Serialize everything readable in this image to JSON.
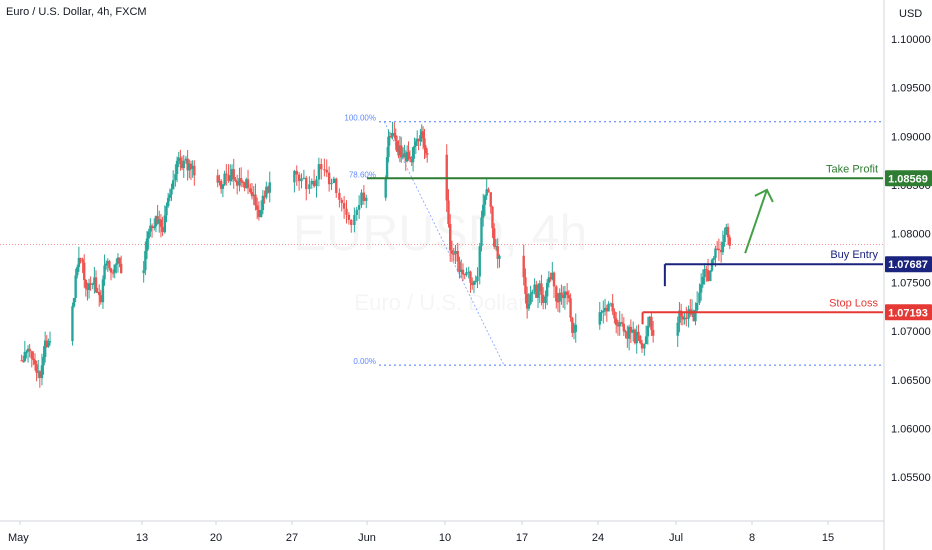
{
  "header": {
    "title": "Euro / U.S. Dollar, 4h, FXCM",
    "currency": "USD"
  },
  "watermark": {
    "symbol": "EURUSD, 4h",
    "name": "Euro / U.S. Dollar"
  },
  "colors": {
    "up": "#26a69a",
    "down": "#ef5350",
    "take_profit": "#2e7d32",
    "buy_entry": "#1a237e",
    "stop_loss": "#e53935",
    "fib": "#2962ff",
    "arrow": "#43a047"
  },
  "chart_data": {
    "type": "candlestick",
    "ylim": [
      1.0505,
      1.104
    ],
    "y_ticks": [
      "1.10000",
      "1.09500",
      "1.09000",
      "1.08500",
      "1.08000",
      "1.07500",
      "1.07000",
      "1.06500",
      "1.06000",
      "1.05500"
    ],
    "x_tick_labels": [
      "May",
      "13",
      "20",
      "27",
      "Jun",
      "10",
      "17",
      "24",
      "Jul",
      "8",
      "15"
    ],
    "x_tick_dates": [
      "2024-05-01",
      "2024-05-13",
      "2024-05-20",
      "2024-05-27",
      "2024-06-01",
      "2024-06-10",
      "2024-06-17",
      "2024-06-24",
      "2024-07-01",
      "2024-07-08",
      "2024-07-15"
    ],
    "ohlc_path": [
      [
        "2024-05-01",
        1.067
      ],
      [
        "2024-05-02",
        1.065
      ],
      [
        "2024-05-03",
        1.07
      ],
      [
        "2024-05-04",
        1.076
      ],
      [
        "2024-05-05",
        1.079
      ],
      [
        "2024-05-06",
        1.077
      ],
      [
        "2024-05-07",
        1.075
      ],
      [
        "2024-05-08",
        1.074
      ],
      [
        "2024-05-09",
        1.0775
      ],
      [
        "2024-05-10",
        1.0772
      ],
      [
        "2024-05-11",
        1.079
      ],
      [
        "2024-05-12",
        1.08
      ],
      [
        "2024-05-13",
        1.079
      ],
      [
        "2024-05-14",
        1.082
      ],
      [
        "2024-05-15",
        1.087
      ],
      [
        "2024-05-16",
        1.0885
      ],
      [
        "2024-05-17",
        1.087
      ],
      [
        "2024-05-18",
        1.0872
      ],
      [
        "2024-05-19",
        1.0878
      ],
      [
        "2024-05-20",
        1.086
      ],
      [
        "2024-05-21",
        1.086
      ],
      [
        "2024-05-22",
        1.0855
      ],
      [
        "2024-05-23",
        1.083
      ],
      [
        "2024-05-24",
        1.085
      ],
      [
        "2024-05-25",
        1.0848
      ],
      [
        "2024-05-26",
        1.084
      ],
      [
        "2024-05-27",
        1.0855
      ],
      [
        "2024-05-28",
        1.087
      ],
      [
        "2024-05-29",
        1.084
      ],
      [
        "2024-05-30",
        1.0805
      ],
      [
        "2024-05-31",
        1.084
      ],
      [
        "2024-06-01",
        1.0845
      ],
      [
        "2024-06-02",
        1.0855
      ],
      [
        "2024-06-03",
        1.091
      ],
      [
        "2024-06-04",
        1.088
      ],
      [
        "2024-06-05",
        1.0875
      ],
      [
        "2024-06-06",
        1.089
      ],
      [
        "2024-06-07",
        1.0895
      ],
      [
        "2024-06-08",
        1.081
      ],
      [
        "2024-06-09",
        1.0795
      ],
      [
        "2024-06-10",
        1.076
      ],
      [
        "2024-06-11",
        1.074
      ],
      [
        "2024-06-12",
        1.074
      ],
      [
        "2024-06-13",
        1.0845
      ],
      [
        "2024-06-14",
        1.078
      ],
      [
        "2024-06-15",
        1.07
      ],
      [
        "2024-06-16",
        1.0705
      ],
      [
        "2024-06-17",
        1.0725
      ],
      [
        "2024-06-18",
        1.0735
      ],
      [
        "2024-06-19",
        1.0745
      ],
      [
        "2024-06-20",
        1.073
      ],
      [
        "2024-06-21",
        1.07
      ],
      [
        "2024-06-22",
        1.0705
      ],
      [
        "2024-06-23",
        1.0695
      ],
      [
        "2024-06-24",
        1.074
      ],
      [
        "2024-06-25",
        1.072
      ],
      [
        "2024-06-26",
        1.07
      ],
      [
        "2024-06-27",
        1.069
      ],
      [
        "2024-06-28",
        1.0705
      ],
      [
        "2024-06-29",
        1.072
      ],
      [
        "2024-06-30",
        1.076
      ],
      [
        "2024-07-01",
        1.073
      ],
      [
        "2024-07-02",
        1.072
      ],
      [
        "2024-07-03",
        1.076
      ],
      [
        "2024-07-04",
        1.079
      ],
      [
        "2024-07-05",
        1.0792
      ]
    ],
    "fibonacci": {
      "levels": [
        {
          "label": "100.00%",
          "price": 1.0915
        },
        {
          "label": "78.60%",
          "price": 1.08569
        },
        {
          "label": "0.00%",
          "price": 1.0665
        }
      ],
      "start": "2024-06-01",
      "end": "2024-07-31"
    },
    "price_lines": [
      {
        "label": "Take Profit",
        "price": 1.08569,
        "price_text": "1.08569",
        "start": "2024-06-01",
        "color_key": "take_profit"
      },
      {
        "label": "Buy Entry",
        "price": 1.07687,
        "price_text": "1.07687",
        "start": "2024-06-30",
        "color_key": "buy_entry"
      },
      {
        "label": "Stop Loss",
        "price": 1.07193,
        "price_text": "1.07193",
        "start": "2024-06-28",
        "color_key": "stop_loss"
      }
    ],
    "current_price": 1.0789,
    "arrow": {
      "from": [
        "2024-07-07",
        1.078
      ],
      "to": [
        "2024-07-09",
        1.0845
      ]
    }
  }
}
